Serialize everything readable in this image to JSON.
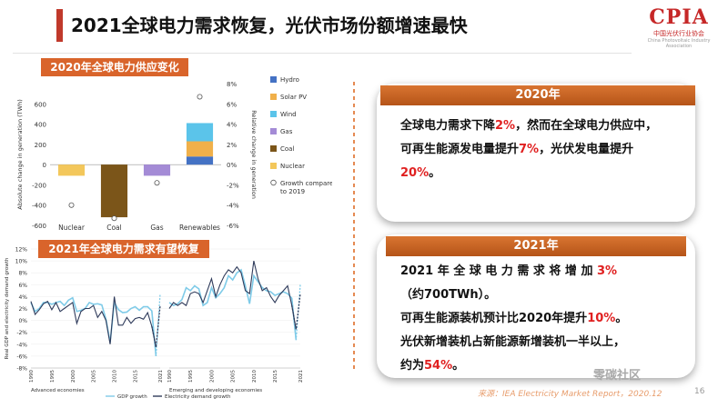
{
  "header": {
    "title": "2021全球电力需求恢复，光伏市场份额增速最快"
  },
  "logo": {
    "text": "CPIA",
    "cn": "中国光伏行业协会",
    "en": "China Photovoltaic Industry Association"
  },
  "panel_2020": {
    "heading": "2020年",
    "segments": [
      {
        "text": "全球电力需求下降",
        "hl": false
      },
      {
        "text": "2%",
        "hl": true
      },
      {
        "text": "，然而在全球电力供应中，可再生能源发电量提升",
        "hl": false
      },
      {
        "text": "7%",
        "hl": true
      },
      {
        "text": "，光伏发电量提升",
        "hl": false
      },
      {
        "text": "20%",
        "hl": true
      },
      {
        "text": "。",
        "hl": false
      }
    ]
  },
  "panel_2021": {
    "heading": "2021年",
    "lines": [
      [
        {
          "text": "2021 年 全 球 电 力 需 求 将 增 加 ",
          "hl": false
        },
        {
          "text": "3%",
          "hl": true
        }
      ],
      [
        {
          "text": "（约700TWh）。",
          "hl": false
        }
      ],
      [
        {
          "text": "可再生能源装机预计比2020年提升",
          "hl": false
        },
        {
          "text": "10%",
          "hl": true
        },
        {
          "text": "。",
          "hl": false
        }
      ],
      [
        {
          "text": "光伏新增装机占新能源新增装机一半以上，",
          "hl": false
        }
      ],
      [
        {
          "text": "约为",
          "hl": false
        },
        {
          "text": "54%",
          "hl": true
        },
        {
          "text": "。",
          "hl": false
        }
      ]
    ]
  },
  "footer": {
    "source": "来源：IEA Electricity Market Report，2020.12",
    "page": "16",
    "watermark": "零碳社区"
  },
  "colors": {
    "accent": "#c0392b",
    "orange": "#d9642b",
    "highlight": "#e02020"
  },
  "chart_data": [
    {
      "type": "bar",
      "title": "2020年全球电力供应变化",
      "ylabel": "Absolute change in generation (TWh)",
      "y2label": "Relative change in generation",
      "ylim": [
        -600,
        800
      ],
      "y2lim": [
        -6,
        8
      ],
      "yticks": [
        -600,
        -400,
        -200,
        0,
        200,
        400,
        600
      ],
      "y2ticks": [
        "-6%",
        "-4%",
        "-2%",
        "0%",
        "2%",
        "4%",
        "6%",
        "8%"
      ],
      "categories": [
        "Nuclear",
        "Coal",
        "Gas",
        "Renewables"
      ],
      "legend_position": "right",
      "series": [
        {
          "name": "Hydro",
          "color": "#4472c4",
          "values": [
            0,
            0,
            0,
            80
          ]
        },
        {
          "name": "Solar PV",
          "color": "#f0b04a",
          "values": [
            0,
            0,
            0,
            150
          ]
        },
        {
          "name": "Wind",
          "color": "#5bc4ea",
          "values": [
            0,
            0,
            0,
            180
          ]
        },
        {
          "name": "Gas",
          "color": "#a48bd6",
          "values": [
            0,
            0,
            -110,
            0
          ]
        },
        {
          "name": "Coal",
          "color": "#7b5519",
          "values": [
            0,
            -520,
            0,
            0
          ]
        },
        {
          "name": "Nuclear",
          "color": "#f3c75b",
          "values": [
            -110,
            0,
            0,
            0
          ]
        }
      ],
      "markers": {
        "name": "Growth compared to 2019",
        "values": [
          -4,
          -5.3,
          -1.8,
          6.7
        ]
      }
    },
    {
      "type": "line",
      "title": "2021年全球电力需求有望恢复",
      "ylabel": "Real GDP and electricity demand growth",
      "ylim": [
        -8,
        12
      ],
      "yticks": [
        "-8%",
        "-6%",
        "-4%",
        "-2%",
        "0%",
        "2%",
        "4%",
        "6%",
        "8%",
        "10%",
        "12%"
      ],
      "groups": [
        "Advanced economies",
        "Emerging and developing economies"
      ],
      "xticks": [
        "1990",
        "1995",
        "2000",
        "2005",
        "2010",
        "2015",
        "2021",
        "1990",
        "1995",
        "2000",
        "2005",
        "2010",
        "2015",
        "2021"
      ],
      "legend_position": "bottom",
      "series": [
        {
          "name": "GDP growth",
          "color": "#7fcbe8",
          "adv": [
            3.0,
            1.5,
            2.0,
            3.0,
            3.0,
            2.7,
            3.0,
            3.2,
            2.5,
            3.4,
            3.8,
            1.5,
            1.7,
            2.0,
            3.0,
            2.7,
            2.8,
            2.6,
            0.2,
            -3.7,
            3.0,
            1.8,
            1.3,
            1.4,
            2.0,
            2.3,
            1.7,
            2.3,
            2.3,
            1.6,
            -6.0,
            4.5
          ],
          "emg": [
            3.0,
            2.5,
            2.8,
            3.5,
            5.5,
            5.0,
            5.8,
            5.3,
            2.5,
            3.0,
            5.5,
            3.8,
            4.5,
            5.5,
            7.5,
            6.8,
            8.0,
            8.5,
            5.8,
            2.8,
            7.5,
            6.5,
            5.5,
            5.0,
            4.8,
            4.2,
            4.5,
            4.8,
            4.5,
            3.7,
            -3.3,
            6.0
          ]
        },
        {
          "name": "Electricity demand growth",
          "color": "#2f3b5b",
          "adv": [
            3.2,
            1.0,
            1.8,
            2.8,
            3.2,
            1.8,
            3.0,
            1.5,
            2.0,
            2.5,
            3.0,
            -0.5,
            1.5,
            2.0,
            2.0,
            2.5,
            0.5,
            1.5,
            0.0,
            -4.0,
            4.0,
            -0.8,
            -0.8,
            0.5,
            -0.5,
            0.3,
            0.5,
            0.2,
            1.3,
            -1.0,
            -4.5,
            2.5
          ],
          "emg": [
            2.0,
            3.0,
            2.5,
            3.0,
            2.5,
            4.5,
            4.8,
            4.5,
            3.0,
            5.0,
            7.0,
            4.0,
            6.0,
            7.5,
            8.5,
            8.0,
            9.0,
            8.0,
            5.0,
            4.5,
            10.0,
            7.0,
            5.0,
            5.5,
            4.0,
            3.0,
            4.2,
            5.0,
            5.8,
            2.5,
            -1.5,
            4.5
          ]
        }
      ]
    }
  ]
}
